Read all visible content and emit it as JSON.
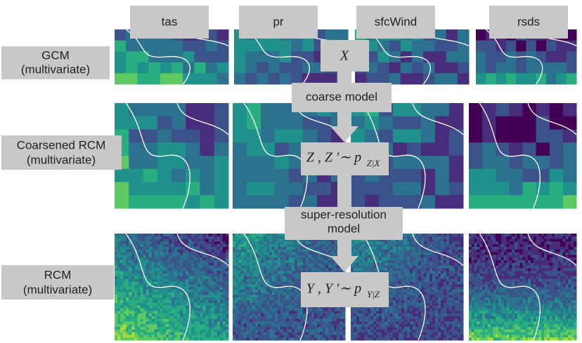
{
  "columns": [
    "tas",
    "pr",
    "sfcWind",
    "rsds"
  ],
  "rows": [
    {
      "label": [
        "GCM",
        "(multivariate)"
      ]
    },
    {
      "label": [
        "Coarsened RCM",
        "(multivariate)"
      ]
    },
    {
      "label": [
        "RCM",
        "(multivariate)"
      ]
    }
  ],
  "steps": {
    "x": "X",
    "coarse_model": "coarse model",
    "z": {
      "main": "Z , Z ′∼ p",
      "subscript": "Z|X"
    },
    "super_resolution": [
      "super-resolution",
      "model"
    ],
    "y": {
      "main": "Y , Y ′∼ p",
      "subscript": "Y|Z"
    }
  }
}
